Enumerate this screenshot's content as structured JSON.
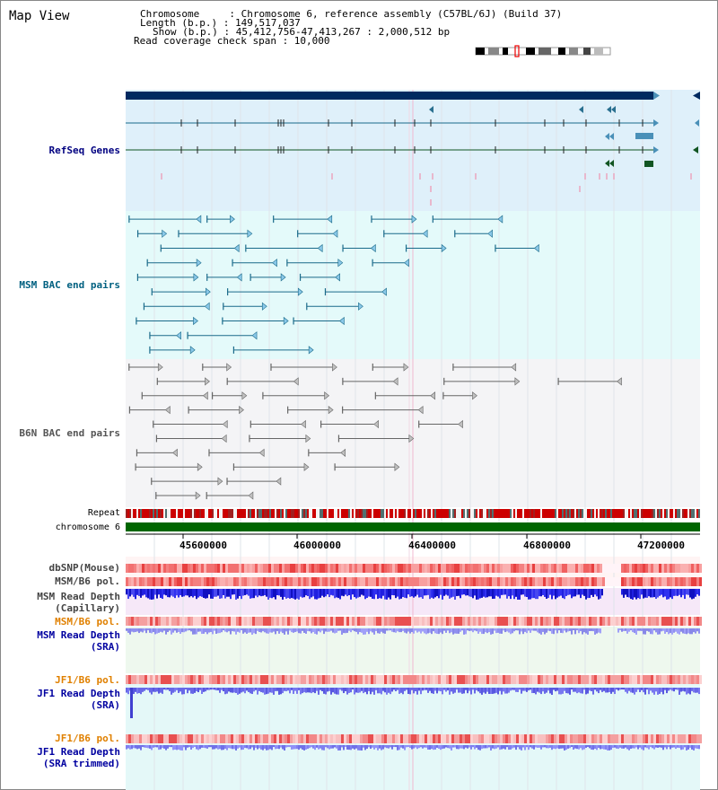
{
  "header": {
    "title": "Map View",
    "info_lines": [
      "Chromosome     : Chromosome 6, reference assembly (C57BL/6J) (Build 37)",
      "Length (b.p.) : 149,517,037",
      "Show (b.p.) : 45,412,756-47,413,267 : 2,000,512 bp",
      "Read coverage check span : 10,000"
    ]
  },
  "tracks": {
    "refseq": {
      "label": "RefSeq Genes",
      "color": "#000080"
    },
    "msm_bac": {
      "label": "MSM BAC end pairs",
      "color": "#006080"
    },
    "b6n_bac": {
      "label": "B6N BAC end pairs",
      "color": "#555555"
    },
    "repeat": {
      "label": "Repeat",
      "color": "#000000"
    },
    "chromosome": {
      "label": "chromosome 6",
      "color": "#000000"
    },
    "dbsnp": {
      "label": "dbSNP(Mouse)",
      "color": "#444444"
    },
    "msm_b6_pol": {
      "label": "MSM/B6 pol.",
      "color": "#444444"
    },
    "msm_read_depth_cap": {
      "label1": "MSM Read Depth",
      "label2": "(Capillary)",
      "color": "#444444"
    },
    "msm_b6_pol_2": {
      "label": "MSM/B6 pol.",
      "color": "#e08000"
    },
    "msm_read_depth_sra": {
      "label1": "MSM Read Depth",
      "label2": "(SRA)",
      "color": "#0000a0"
    },
    "jf1_b6_pol": {
      "label": "JF1/B6 pol.",
      "color": "#e08000"
    },
    "jf1_read_depth_sra": {
      "label1": "JF1 Read Depth",
      "label2": "(SRA)",
      "color": "#0000a0"
    },
    "jf1_b6_pol_2": {
      "label": "JF1/B6 pol.",
      "color": "#e08000"
    },
    "jf1_read_depth_trim": {
      "label1": "JF1 Read Depth",
      "label2": "(SRA trimmed)",
      "color": "#0000a0"
    }
  },
  "axis": {
    "ticks": [
      "45600000",
      "46000000",
      "46400000",
      "46800000",
      "47200000"
    ]
  },
  "colors": {
    "refseq_bg": "#dff0fa",
    "msm_bg": "#e4fafa",
    "b6n_bg": "#f4f4f6",
    "depth_cap_bg": "#f6e8f8",
    "sra_bg": "#eef8ee",
    "jf1_bg": "#e4f8f8"
  }
}
